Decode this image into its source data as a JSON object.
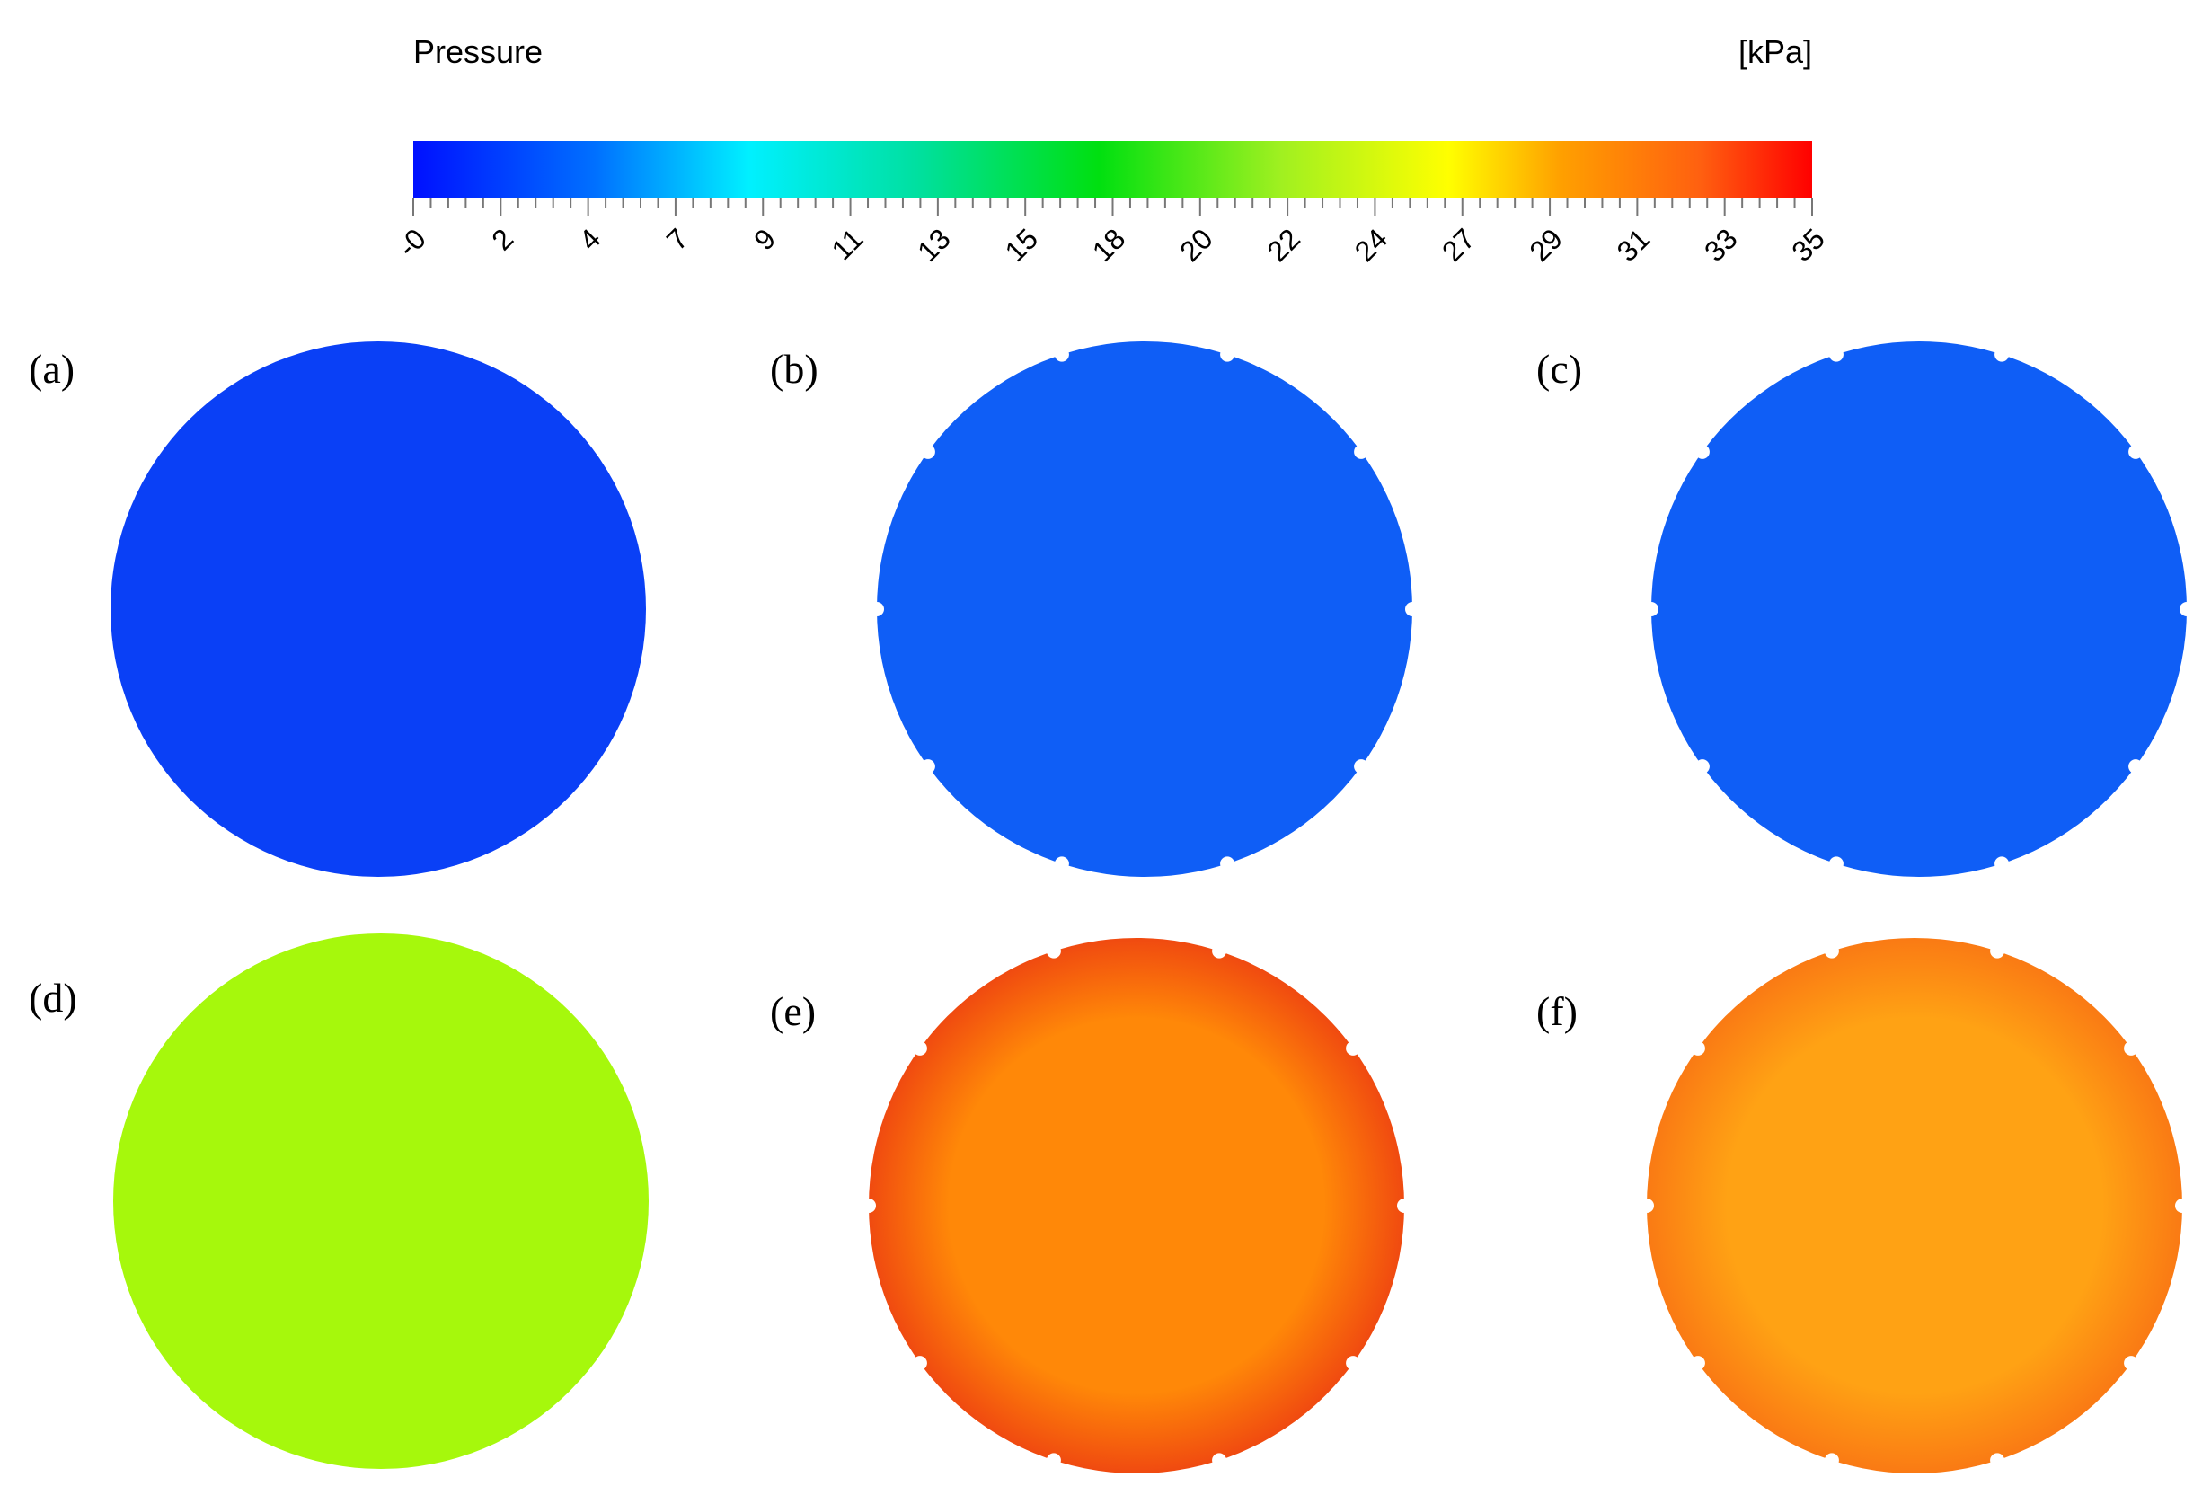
{
  "colorbar": {
    "title": "Pressure",
    "unit": "[kPa]",
    "ticks": [
      "-0",
      "2",
      "4",
      "7",
      "9",
      "11",
      "13",
      "15",
      "18",
      "20",
      "22",
      "24",
      "27",
      "29",
      "31",
      "33",
      "35"
    ]
  },
  "panels": [
    {
      "label": "(a)",
      "color": "#0a40f6",
      "notched": false
    },
    {
      "label": "(b)",
      "color": "#0f5ef6",
      "notched": true
    },
    {
      "label": "(c)",
      "color": "#0f5ef6",
      "notched": true
    },
    {
      "label": "(d)",
      "color": "#a6f80c",
      "notched": false
    },
    {
      "label": "(e)",
      "color": "#ff8808",
      "notched": true,
      "edge": "#f04a10"
    },
    {
      "label": "(f)",
      "color": "#ffa214",
      "notched": true,
      "edge": "#fa7a14"
    }
  ]
}
